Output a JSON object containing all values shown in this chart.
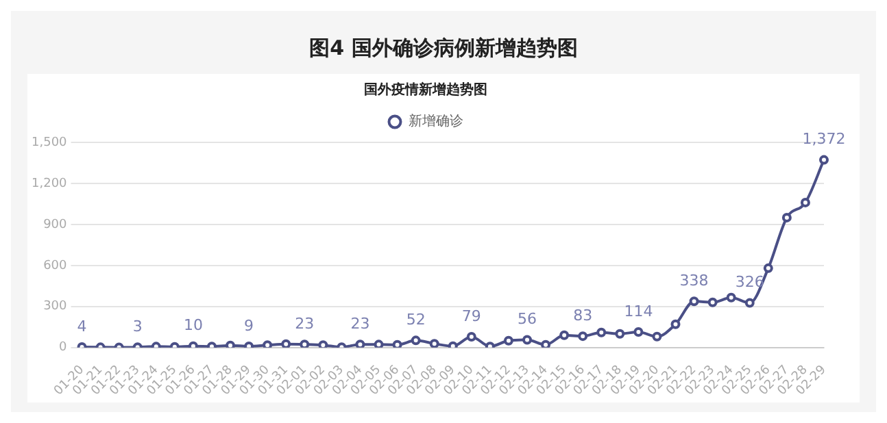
{
  "chart_data": {
    "type": "line",
    "title": "图4 国外确诊病例新增趋势图",
    "subtitle": "国外疫情新增趋势图",
    "categories": [
      "01-20",
      "01-21",
      "01-22",
      "01-23",
      "01-24",
      "01-25",
      "01-26",
      "01-27",
      "01-28",
      "01-29",
      "01-30",
      "01-31",
      "02-01",
      "02-02",
      "02-03",
      "02-04",
      "02-05",
      "02-06",
      "02-07",
      "02-08",
      "02-09",
      "02-10",
      "02-11",
      "02-12",
      "02-13",
      "02-14",
      "02-15",
      "02-16",
      "02-17",
      "02-18",
      "02-19",
      "02-20",
      "02-21",
      "02-22",
      "02-23",
      "02-24",
      "02-25",
      "02-26",
      "02-27",
      "02-28",
      "02-29"
    ],
    "series": [
      {
        "name": "新增确诊",
        "color": "#4a4f86",
        "values": [
          4,
          2,
          1,
          3,
          7,
          5,
          10,
          8,
          15,
          9,
          18,
          25,
          23,
          18,
          3,
          23,
          22,
          20,
          52,
          28,
          10,
          79,
          8,
          50,
          56,
          20,
          90,
          83,
          110,
          100,
          114,
          80,
          170,
          338,
          330,
          365,
          326,
          580,
          950,
          1060,
          1372
        ],
        "value_labels": [
          "4",
          null,
          null,
          "3",
          null,
          null,
          "10",
          null,
          null,
          "9",
          null,
          null,
          "23",
          null,
          null,
          "23",
          null,
          null,
          "52",
          null,
          null,
          "79",
          null,
          null,
          "56",
          null,
          null,
          "83",
          null,
          null,
          "114",
          null,
          null,
          "338",
          null,
          null,
          "326",
          null,
          null,
          null,
          "1,372"
        ]
      }
    ],
    "ylim": [
      0,
      1500
    ],
    "yticks": [
      0,
      300,
      600,
      900,
      {
        "value": 1200,
        "label": "1,200"
      },
      {
        "value": 1500,
        "label": "1,500"
      }
    ],
    "grid": "y",
    "legend": "top",
    "marker": "circle",
    "line_style": "solid"
  }
}
